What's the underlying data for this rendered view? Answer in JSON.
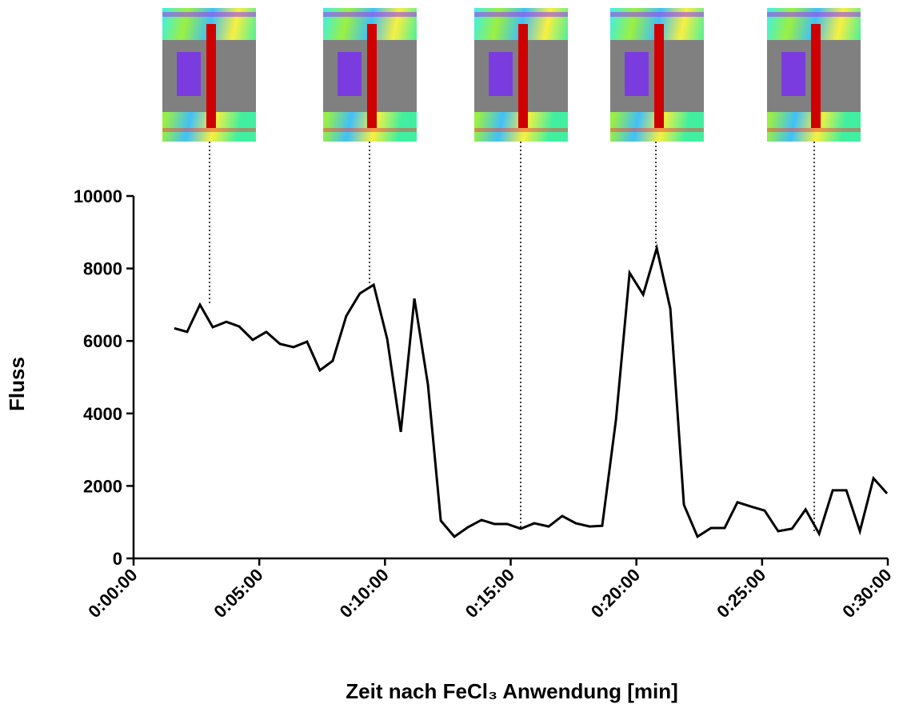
{
  "chart_data": {
    "type": "line",
    "x_label": "Zeit nach FeCl₃ Anwendung [min]",
    "y_label": "Fluss",
    "color": "#000000",
    "x": [
      1.62,
      2.13,
      2.64,
      3.15,
      3.69,
      4.2,
      4.74,
      5.28,
      5.82,
      6.36,
      6.9,
      7.41,
      7.92,
      8.46,
      9.0,
      9.55,
      10.09,
      10.63,
      11.17,
      11.71,
      12.22,
      12.76,
      13.3,
      13.84,
      14.35,
      14.86,
      15.4,
      15.94,
      16.51,
      17.05,
      17.59,
      18.14,
      18.64,
      19.19,
      19.73,
      20.27,
      20.81,
      21.35,
      21.89,
      22.43,
      22.97,
      23.51,
      24.02,
      24.56,
      25.1,
      25.64,
      26.19,
      26.73,
      27.27,
      27.81,
      28.35,
      28.89,
      29.43,
      29.97
    ],
    "values": [
      6350,
      6250,
      7000,
      6380,
      6530,
      6400,
      6030,
      6250,
      5920,
      5830,
      5980,
      5190,
      5450,
      6690,
      7310,
      7550,
      6050,
      3490,
      7170,
      4790,
      1040,
      600,
      860,
      1060,
      950,
      950,
      820,
      970,
      880,
      1170,
      970,
      880,
      900,
      3840,
      7880,
      7280,
      8560,
      6890,
      1480,
      600,
      840,
      840,
      1550,
      1430,
      1320,
      750,
      820,
      1350,
      680,
      1880,
      1880,
      750,
      2210,
      1790
    ],
    "xlim": [
      0,
      30
    ],
    "xticks": [
      {
        "value": 0,
        "label": "0:00:00"
      },
      {
        "value": 5,
        "label": "0:05:00"
      },
      {
        "value": 10,
        "label": "0:10:00"
      },
      {
        "value": 15,
        "label": "0:15:00"
      },
      {
        "value": 20,
        "label": "0:20:00"
      },
      {
        "value": 25,
        "label": "0:25:00"
      },
      {
        "value": 30,
        "label": "0:30:00"
      }
    ],
    "ylim": [
      0,
      10000
    ],
    "yticks": [
      0,
      2000,
      4000,
      6000,
      8000,
      10000
    ]
  }
}
